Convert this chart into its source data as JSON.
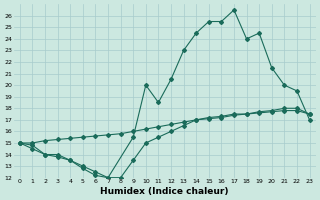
{
  "xlabel": "Humidex (Indice chaleur)",
  "bg_color": "#cce8e0",
  "line_color": "#1a6b5a",
  "grid_color": "#a8cccc",
  "xlim": [
    -0.5,
    23.5
  ],
  "ylim": [
    12,
    27
  ],
  "xticks": [
    0,
    1,
    2,
    3,
    4,
    5,
    6,
    7,
    8,
    9,
    10,
    11,
    12,
    13,
    14,
    15,
    16,
    17,
    18,
    19,
    20,
    21,
    22,
    23
  ],
  "yticks": [
    12,
    13,
    14,
    15,
    16,
    17,
    18,
    19,
    20,
    21,
    22,
    23,
    24,
    25,
    26
  ],
  "line1_x": [
    0,
    1,
    2,
    3,
    4,
    5,
    6,
    7,
    9,
    10,
    11,
    12,
    13,
    14,
    15,
    16,
    17,
    18,
    19,
    20,
    21,
    22,
    23
  ],
  "line1_y": [
    15.0,
    14.5,
    14.0,
    13.8,
    13.5,
    12.8,
    12.2,
    12.0,
    15.5,
    20.0,
    18.5,
    20.5,
    23.0,
    24.5,
    25.5,
    25.5,
    26.5,
    24.0,
    24.5,
    21.5,
    20.0,
    19.5,
    17.0
  ],
  "line2_x": [
    0,
    1,
    2,
    3,
    4,
    5,
    6,
    7,
    8,
    9,
    10,
    11,
    12,
    13,
    14,
    15,
    16,
    17,
    18,
    19,
    20,
    21,
    22,
    23
  ],
  "line2_y": [
    15.0,
    15.0,
    15.2,
    15.3,
    15.4,
    15.5,
    15.6,
    15.7,
    15.8,
    16.0,
    16.2,
    16.4,
    16.6,
    16.8,
    17.0,
    17.1,
    17.2,
    17.4,
    17.5,
    17.6,
    17.7,
    17.8,
    17.8,
    17.5
  ],
  "line3_x": [
    0,
    1,
    2,
    3,
    4,
    5,
    6,
    7,
    8,
    9,
    10,
    11,
    12,
    13,
    14,
    15,
    16,
    17,
    18,
    19,
    20,
    21,
    22,
    23
  ],
  "line3_y": [
    15.0,
    14.8,
    14.0,
    14.0,
    13.5,
    13.0,
    12.5,
    12.0,
    12.0,
    13.5,
    15.0,
    15.5,
    16.0,
    16.5,
    17.0,
    17.2,
    17.3,
    17.5,
    17.5,
    17.7,
    17.8,
    18.0,
    18.0,
    17.5
  ]
}
